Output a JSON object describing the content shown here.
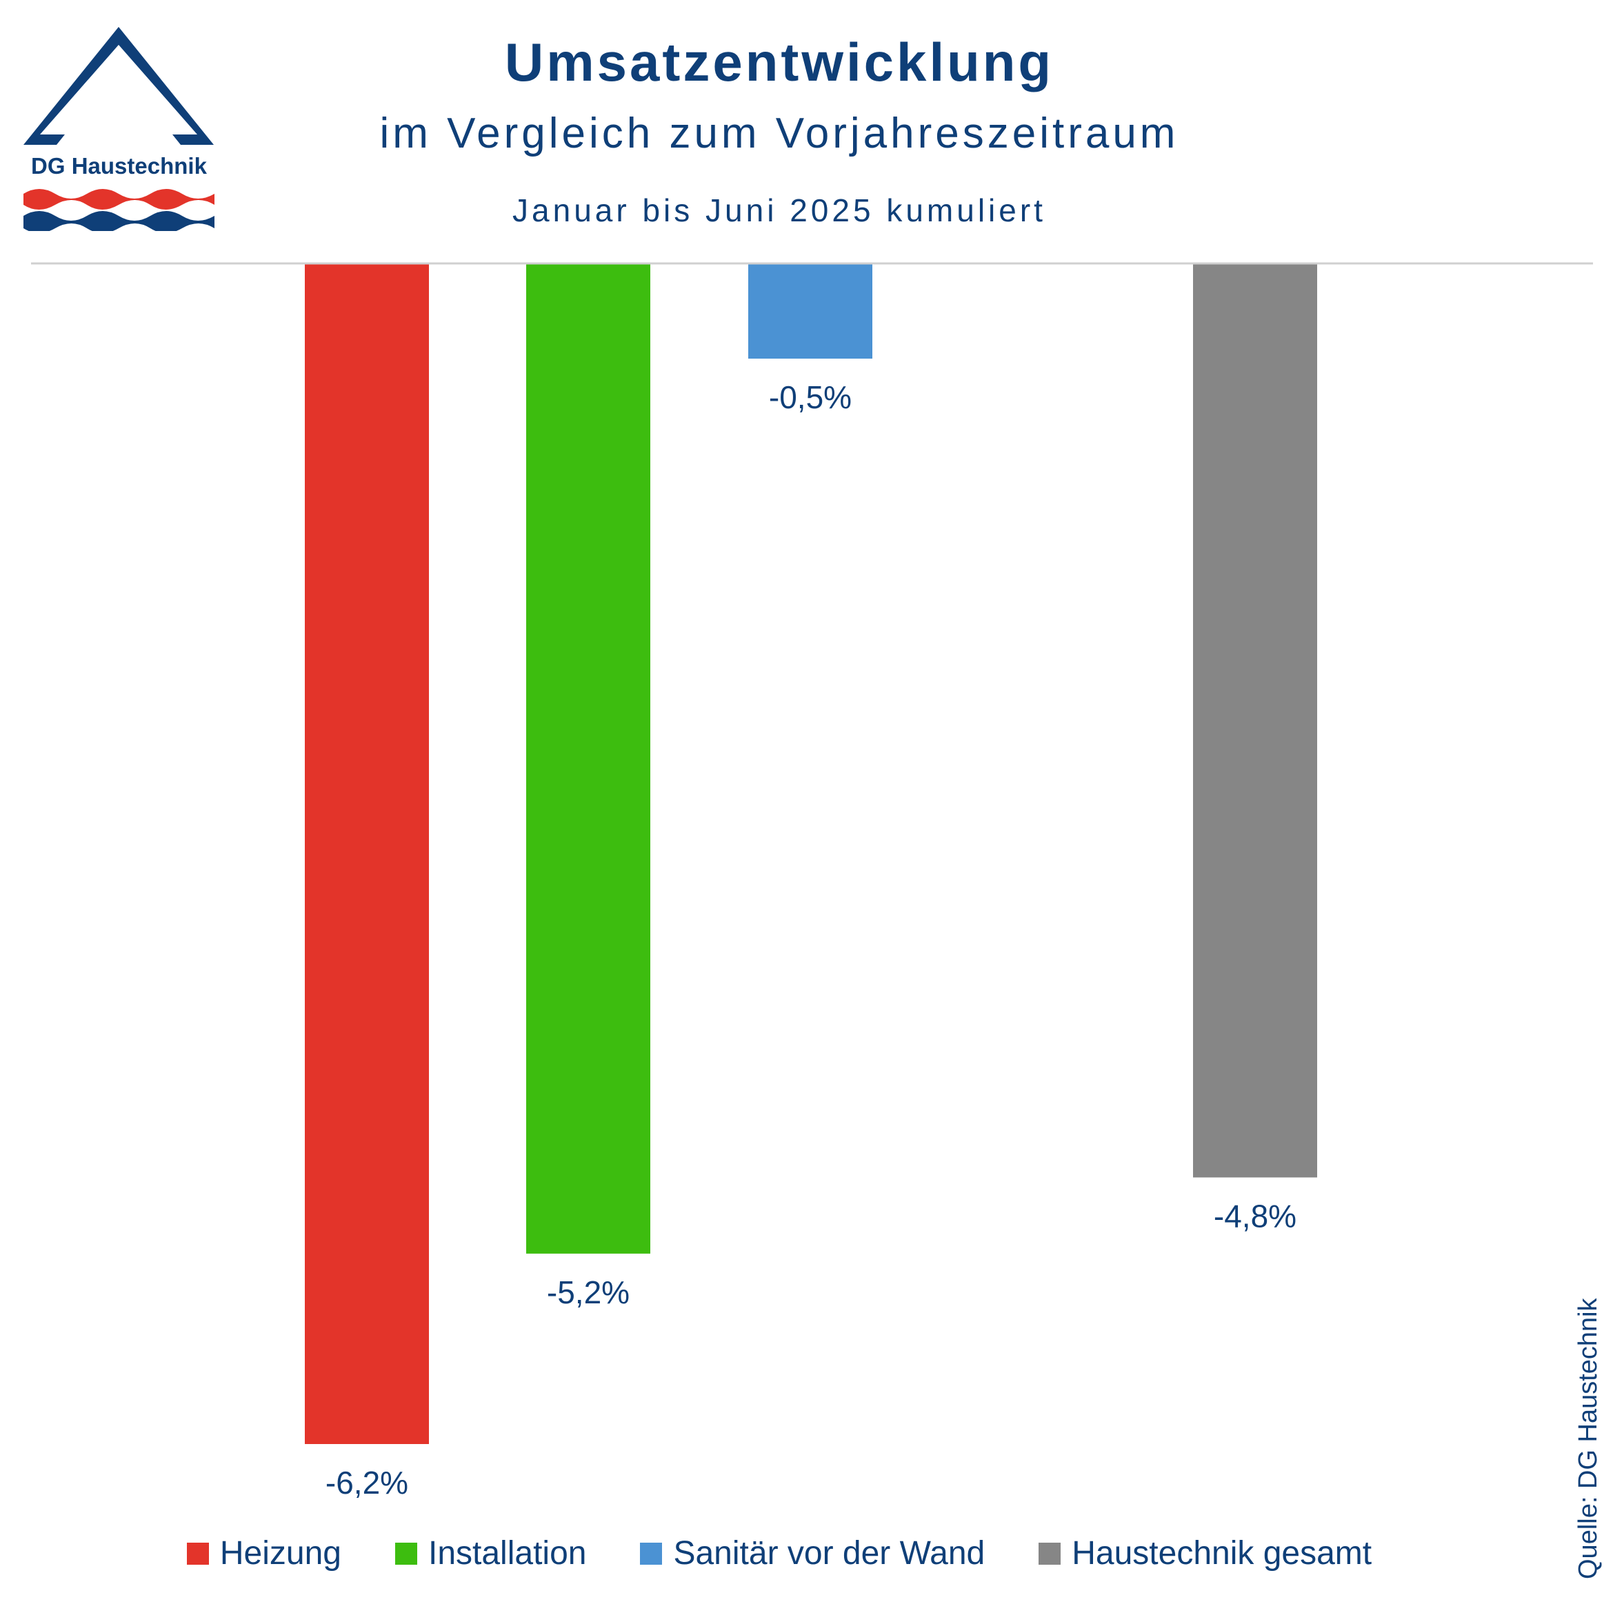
{
  "header": {
    "title": "Umsatzentwicklung",
    "subtitle": "im Vergleich zum Vorjahreszeitraum",
    "period": "Januar bis Juni 2025 kumuliert"
  },
  "logo": {
    "text": "DG Haustechnik"
  },
  "source": "Quelle: DG Haustechnik",
  "colors": {
    "text": "#0f3f78",
    "axis": "#d0d0d0"
  },
  "chart_data": {
    "type": "bar",
    "categories": [
      "Heizung",
      "Installation",
      "Sanitär vor der Wand",
      "Haustechnik gesamt"
    ],
    "values": [
      -6.2,
      -5.2,
      -0.5,
      -4.8
    ],
    "data_labels": [
      "-6,2%",
      "-5,2%",
      "-0,5%",
      "-4,8%"
    ],
    "colors": [
      "#e3342a",
      "#3dbd0f",
      "#4b92d3",
      "#868686"
    ],
    "ylim": [
      -6.2,
      0
    ],
    "grid": false,
    "legend_position": "bottom"
  }
}
